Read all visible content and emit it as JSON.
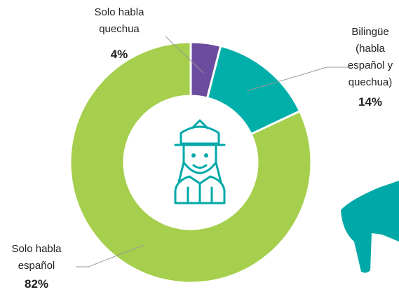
{
  "chart_data": {
    "type": "donut",
    "categories": [
      "Solo habla quechua",
      "Bilingüe (habla español y quechua)",
      "Solo habla español"
    ],
    "values": [
      4,
      14,
      82
    ],
    "value_labels": [
      "4%",
      "14%",
      "82%"
    ],
    "colors": [
      "#6b4c9e",
      "#00aeaa",
      "#a5cf4c"
    ]
  }
}
